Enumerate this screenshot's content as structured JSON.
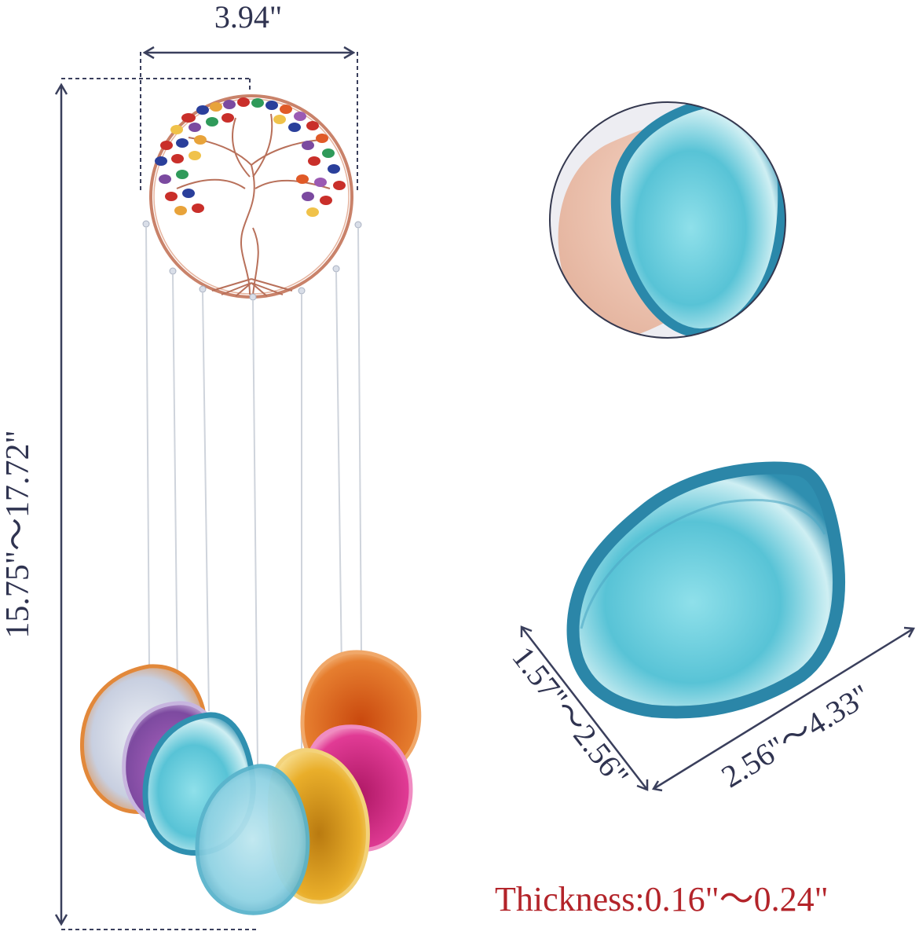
{
  "dimensions": {
    "top_width": "3.94\"",
    "total_length": "15.75\"～17.72\"",
    "slice_width": "1.57\"～2.56\"",
    "slice_length": "2.56\"～4.33\""
  },
  "thickness": {
    "label": "Thickness",
    "separator": ":",
    "value": "0.16\"～0.24\""
  },
  "colors": {
    "dimension_line": "#3a3f5c",
    "thickness_text": "#b3242a",
    "agate_teal": "#3fb6c9",
    "agate_orange": "#e0772a",
    "agate_pink": "#d9338c",
    "agate_purple": "#8b5aa6",
    "agate_yellow": "#e8b028",
    "copper_wire": "#c9826a"
  },
  "icons": [
    "tree-of-life-icon",
    "agate-slice-icon",
    "hand-icon"
  ]
}
